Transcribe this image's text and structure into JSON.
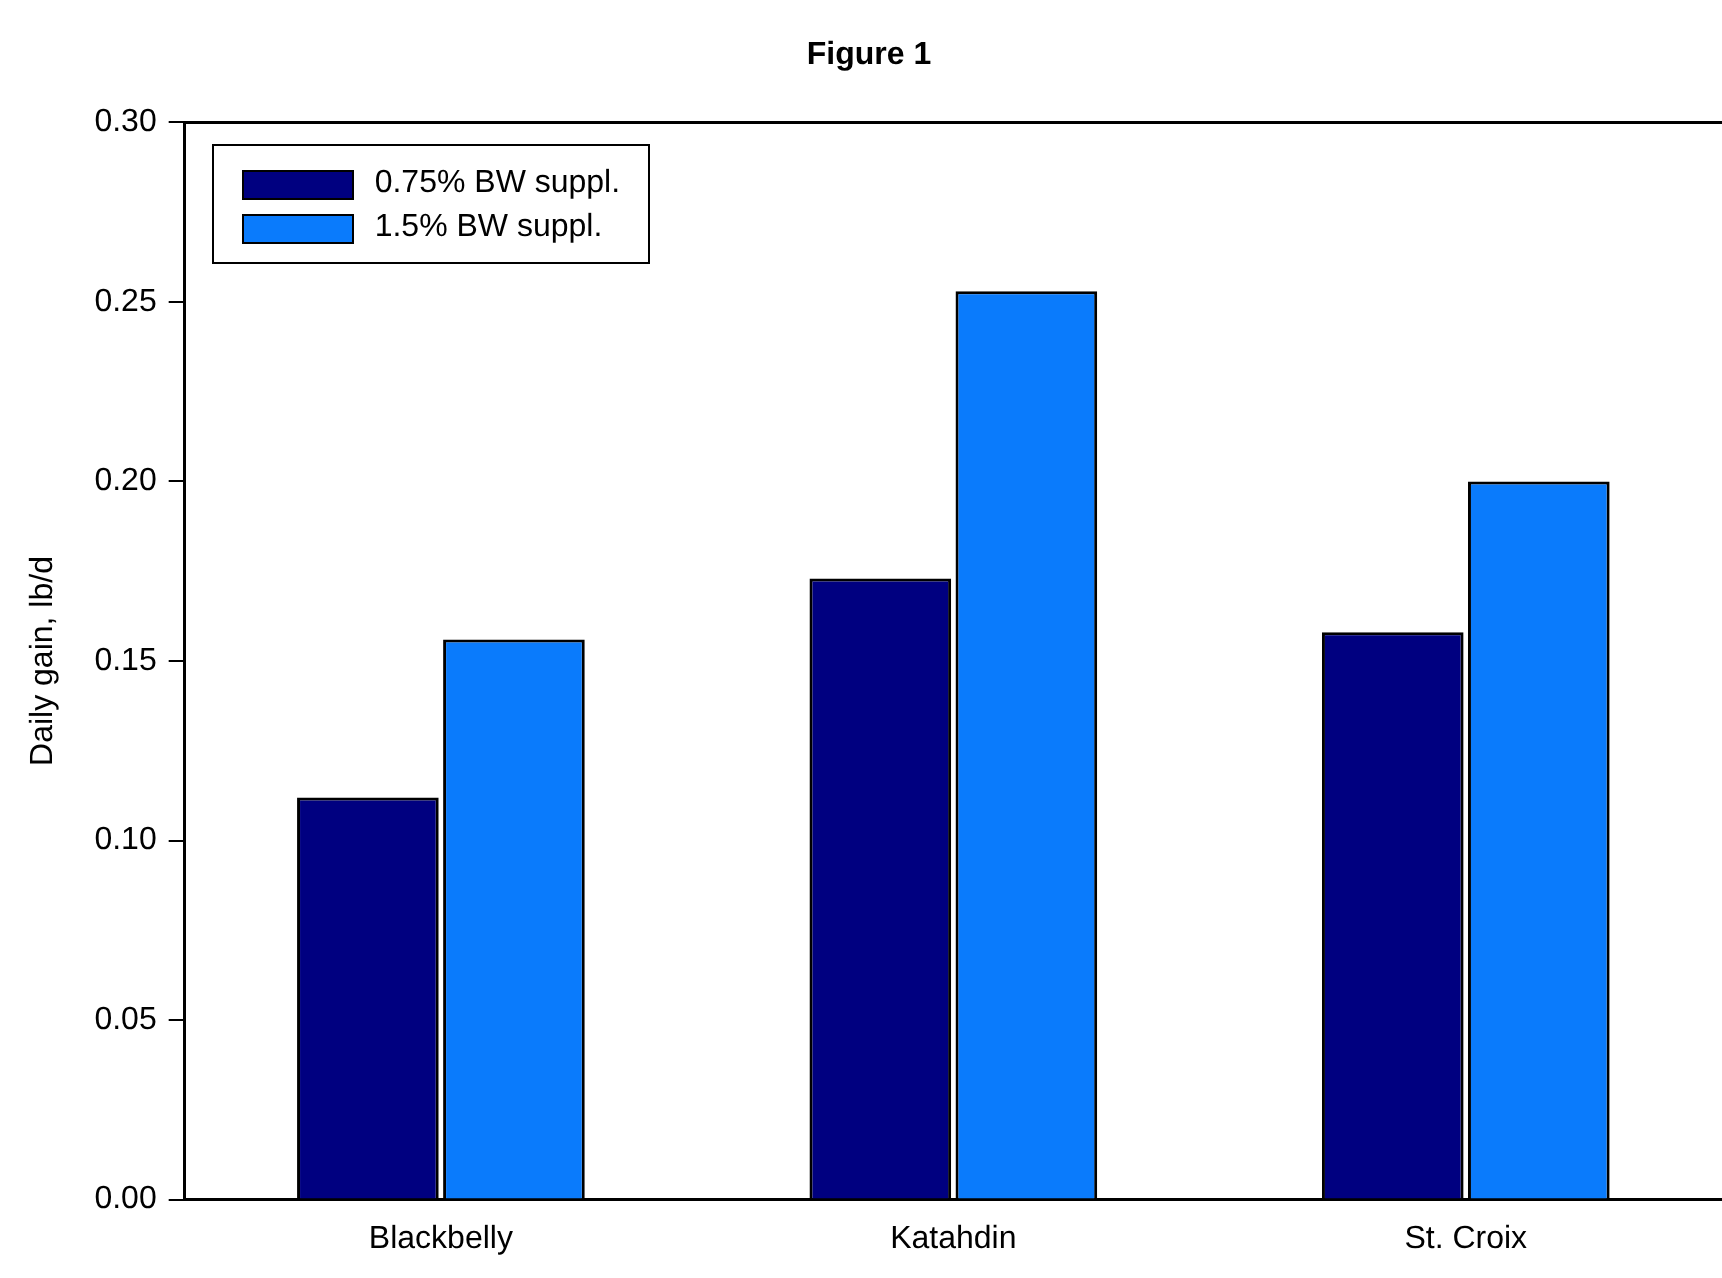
{
  "chart_data": {
    "type": "bar",
    "title": "Figure 1",
    "ylabel": "Daily gain, lb/d",
    "categories": [
      "Blackbelly",
      "Katahdin",
      "St. Croix"
    ],
    "series": [
      {
        "name": "0.75% BW suppl.",
        "color": "#000080",
        "values": [
          0.112,
          0.173,
          0.158
        ]
      },
      {
        "name": "1.5% BW suppl.",
        "color": "#0a7bfc",
        "values": [
          0.156,
          0.253,
          0.2
        ]
      }
    ],
    "ylim": [
      0,
      0.3
    ],
    "yticks": [
      {
        "value": 0,
        "label": "0.00"
      },
      {
        "value": 0.05,
        "label": "0.05"
      },
      {
        "value": 0.1,
        "label": "0.10"
      },
      {
        "value": 0.15,
        "label": "0.15"
      },
      {
        "value": 0.2,
        "label": "0.20"
      },
      {
        "value": 0.25,
        "label": "0.25"
      },
      {
        "value": 0.3,
        "label": "0.30"
      }
    ],
    "grid": false,
    "legend": "top left"
  }
}
